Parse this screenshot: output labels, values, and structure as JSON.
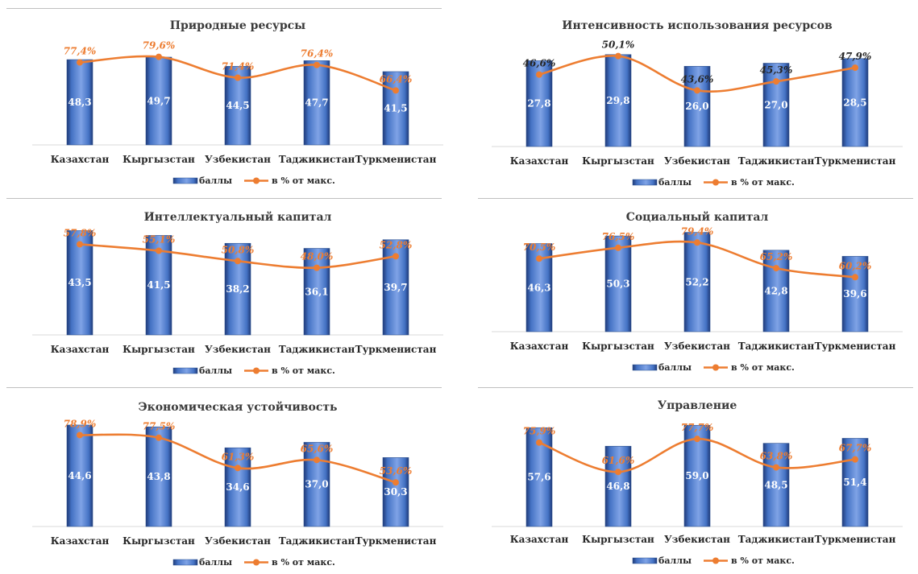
{
  "legend": {
    "bars": "баллы",
    "line": "в % от макс."
  },
  "colors": {
    "bar": "#4472c4",
    "bar_dark": "#1f3a78",
    "bar_light": "#7fa3e6",
    "line": "#ed7d31",
    "pct_label_accent": "#ed7d31",
    "pct_label_plain": "#262626"
  },
  "chart_data": [
    {
      "type": "bar",
      "title": "Природные ресурсы",
      "categories": [
        "Казахстан",
        "Кыргызстан",
        "Узбекистан",
        "Таджикистан",
        "Туркменистан"
      ],
      "series": [
        {
          "name": "баллы",
          "type": "bar",
          "values": [
            48.3,
            49.7,
            44.5,
            47.7,
            41.5
          ],
          "labels": [
            "48,3",
            "49,7",
            "44,5",
            "47,7",
            "41,5"
          ]
        },
        {
          "name": "в % от макс.",
          "type": "line",
          "values": [
            77.4,
            79.6,
            71.4,
            76.4,
            66.4
          ],
          "labels": [
            "77,4%",
            "79,6%",
            "71,4%",
            "76,4%",
            "66,4%"
          ]
        }
      ],
      "pct_label_style": "accent",
      "legend_position": "bottom"
    },
    {
      "type": "bar",
      "title": "Интенсивность использования ресурсов",
      "categories": [
        "Казахстан",
        "Кыргызстан",
        "Узбекистан",
        "Таджикистан",
        "Туркменистан"
      ],
      "series": [
        {
          "name": "баллы",
          "type": "bar",
          "values": [
            27.8,
            29.8,
            26.0,
            27.0,
            28.5
          ],
          "labels": [
            "27,8",
            "29,8",
            "26,0",
            "27,0",
            "28,5"
          ]
        },
        {
          "name": "в % от макс.",
          "type": "line",
          "values": [
            46.6,
            50.1,
            43.6,
            45.3,
            47.9
          ],
          "labels": [
            "46,6%",
            "50,1%",
            "43,6%",
            "45,3%",
            "47,9%"
          ]
        }
      ],
      "pct_label_style": "plain",
      "legend_position": "bottom"
    },
    {
      "type": "bar",
      "title": "Интеллектуальный капитал",
      "categories": [
        "Казахстан",
        "Кыргызстан",
        "Узбекистан",
        "Таджикистан",
        "Туркменистан"
      ],
      "series": [
        {
          "name": "баллы",
          "type": "bar",
          "values": [
            43.5,
            41.5,
            38.2,
            36.1,
            39.7
          ],
          "labels": [
            "43,5",
            "41,5",
            "38,2",
            "36,1",
            "39,7"
          ]
        },
        {
          "name": "в % от макс.",
          "type": "line",
          "values": [
            57.8,
            55.1,
            50.8,
            48.0,
            52.8
          ],
          "labels": [
            "57,8%",
            "55,1%",
            "50,8%",
            "48,0%",
            "52,8%"
          ]
        }
      ],
      "pct_label_style": "accent",
      "legend_position": "bottom"
    },
    {
      "type": "bar",
      "title": "Социальный капитал",
      "categories": [
        "Казахстан",
        "Кыргызстан",
        "Узбекистан",
        "Таджикистан",
        "Туркменистан"
      ],
      "series": [
        {
          "name": "баллы",
          "type": "bar",
          "values": [
            46.3,
            50.3,
            52.2,
            42.8,
            39.6
          ],
          "labels": [
            "46,3",
            "50,3",
            "52,2",
            "42,8",
            "39,6"
          ]
        },
        {
          "name": "в % от макс.",
          "type": "line",
          "values": [
            70.5,
            76.5,
            79.4,
            65.2,
            60.2
          ],
          "labels": [
            "70,5%",
            "76,5%",
            "79,4%",
            "65,2%",
            "60,2%"
          ]
        }
      ],
      "pct_label_style": "accent",
      "legend_position": "bottom"
    },
    {
      "type": "bar",
      "title": "Экономическая устойчивость",
      "categories": [
        "Казахстан",
        "Кыргызстан",
        "Узбекистан",
        "Таджикистан",
        "Туркменистан"
      ],
      "series": [
        {
          "name": "баллы",
          "type": "bar",
          "values": [
            44.6,
            43.8,
            34.6,
            37.0,
            30.3
          ],
          "labels": [
            "44,6",
            "43,8",
            "34,6",
            "37,0",
            "30,3"
          ]
        },
        {
          "name": "в % от макс.",
          "type": "line",
          "values": [
            78.9,
            77.5,
            61.3,
            65.6,
            53.6
          ],
          "labels": [
            "78,9%",
            "77,5%",
            "61,3%",
            "65,6%",
            "53,6%"
          ]
        }
      ],
      "pct_label_style": "accent",
      "legend_position": "bottom"
    },
    {
      "type": "bar",
      "title": "Управление",
      "categories": [
        "Казахстан",
        "Кыргызстан",
        "Узбекистан",
        "Таджикистан",
        "Туркменистан"
      ],
      "series": [
        {
          "name": "баллы",
          "type": "bar",
          "values": [
            57.6,
            46.8,
            59.0,
            48.5,
            51.4
          ],
          "labels": [
            "57,6",
            "46,8",
            "59,0",
            "48,5",
            "51,4"
          ]
        },
        {
          "name": "в % от макс.",
          "type": "line",
          "values": [
            75.9,
            61.6,
            77.7,
            63.8,
            67.7
          ],
          "labels": [
            "75,9%",
            "61,6%",
            "77,7%",
            "63,8%",
            "67,7%"
          ]
        }
      ],
      "pct_label_style": "accent",
      "legend_position": "bottom"
    }
  ]
}
